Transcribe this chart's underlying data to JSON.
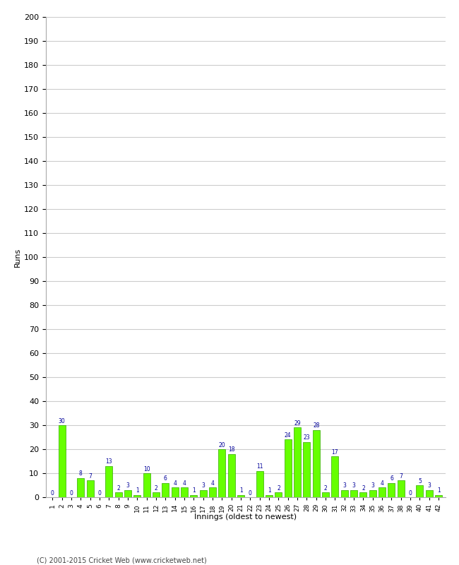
{
  "title": "",
  "xlabel": "Innings (oldest to newest)",
  "ylabel": "Runs",
  "ylim": [
    0,
    200
  ],
  "yticks": [
    0,
    10,
    20,
    30,
    40,
    50,
    60,
    70,
    80,
    90,
    100,
    110,
    120,
    130,
    140,
    150,
    160,
    170,
    180,
    190,
    200
  ],
  "innings": [
    1,
    2,
    3,
    4,
    5,
    6,
    7,
    8,
    9,
    10,
    11,
    12,
    13,
    14,
    15,
    16,
    17,
    18,
    19,
    20,
    21,
    22,
    23,
    24,
    25,
    26,
    27,
    28,
    29,
    30,
    31,
    32,
    33,
    34,
    35,
    36,
    37,
    38,
    39,
    40,
    41,
    42
  ],
  "values": [
    0,
    30,
    0,
    8,
    7,
    0,
    13,
    2,
    3,
    1,
    10,
    2,
    6,
    4,
    4,
    1,
    3,
    4,
    20,
    18,
    1,
    0,
    11,
    1,
    2,
    24,
    29,
    23,
    28,
    2,
    17,
    3,
    3,
    2,
    3,
    4,
    6,
    7,
    0,
    5,
    3,
    1
  ],
  "bar_color": "#66ff00",
  "bar_edge_color": "#33aa00",
  "label_color": "#000099",
  "background_color": "#ffffff",
  "grid_color": "#cccccc",
  "footer": "(C) 2001-2015 Cricket Web (www.cricketweb.net)"
}
